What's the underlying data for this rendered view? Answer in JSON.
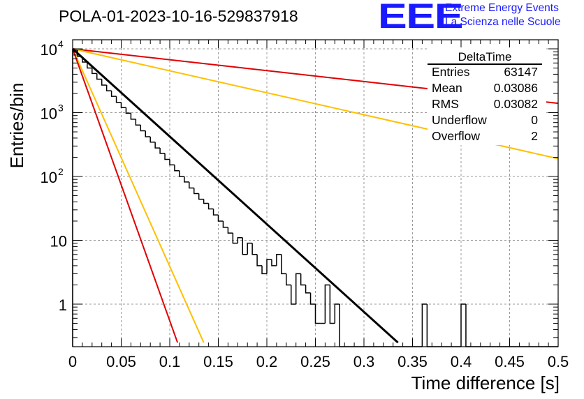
{
  "header": {
    "title": "POLA-01-2023-10-16-529837918",
    "logo_letters": "EEE",
    "logo_line1": "Extreme Energy Events",
    "logo_line2": "La Scienza nelle Scuole"
  },
  "colors": {
    "histogram": "#000000",
    "fit": "#000000",
    "ref_red": "#e00000",
    "ref_orange": "#ffc000",
    "logo": "#1a1aff",
    "grid": "#999999"
  },
  "stats_box": {
    "name": "DeltaTime",
    "rows": [
      {
        "label": "Entries",
        "value": "63147"
      },
      {
        "label": "Mean",
        "value": "0.03086"
      },
      {
        "label": "RMS",
        "value": "0.03082"
      },
      {
        "label": "Underflow",
        "value": "0"
      },
      {
        "label": "Overflow",
        "value": "2"
      }
    ]
  },
  "chart_data": {
    "type": "bar",
    "xlabel": "Time difference [s]",
    "ylabel": "Entries/bin",
    "xlim": [
      0,
      0.5
    ],
    "ylim": [
      0.25,
      15000
    ],
    "y_scale": "log",
    "grid": true,
    "x_ticks": [
      "0",
      "0.05",
      "0.1",
      "0.15",
      "0.2",
      "0.25",
      "0.3",
      "0.35",
      "0.4",
      "0.45",
      "0.5"
    ],
    "y_ticks": [
      {
        "value": 1,
        "label": "1"
      },
      {
        "value": 10,
        "label": "10"
      },
      {
        "value": 100,
        "label": "10",
        "exp": "2"
      },
      {
        "value": 1000,
        "label": "10",
        "exp": "3"
      },
      {
        "value": 10000,
        "label": "10",
        "exp": "4"
      }
    ],
    "bin_width": 0.005,
    "counts": [
      9500,
      7600,
      6200,
      5000,
      4100,
      3350,
      2700,
      2200,
      1800,
      1450,
      1200,
      980,
      790,
      640,
      520,
      420,
      345,
      280,
      230,
      185,
      152,
      123,
      100,
      82,
      66,
      54,
      44,
      38,
      31,
      25,
      20,
      16,
      13,
      9,
      11,
      6,
      9,
      6,
      4,
      3,
      5,
      4,
      6,
      3,
      2,
      1,
      3,
      2,
      1.5,
      1,
      0.5,
      0.5,
      2,
      0.5,
      1,
      0,
      0,
      0,
      0,
      0,
      0,
      0,
      0,
      0,
      0,
      0,
      0,
      0,
      0,
      0,
      0,
      0,
      1,
      0,
      0,
      0,
      0,
      0,
      0,
      0,
      1,
      0,
      0,
      0,
      0,
      0,
      0,
      0,
      0,
      0,
      0,
      0,
      0,
      0,
      0,
      0,
      0,
      0,
      0,
      0
    ],
    "lines": [
      {
        "kind": "fit",
        "color": "#000000",
        "x": [
          0,
          0.335
        ],
        "y": [
          10000,
          0.25
        ]
      },
      {
        "kind": "reference",
        "color": "#e00000",
        "x": [
          0,
          0.5
        ],
        "y": [
          10000,
          1400
        ]
      },
      {
        "kind": "reference",
        "color": "#ffc000",
        "x": [
          0,
          0.5
        ],
        "y": [
          10000,
          190
        ]
      },
      {
        "kind": "reference",
        "color": "#ffc000",
        "x": [
          0,
          0.135
        ],
        "y": [
          10000,
          0.25
        ]
      },
      {
        "kind": "reference",
        "color": "#e00000",
        "x": [
          0,
          0.108
        ],
        "y": [
          10000,
          0.25
        ]
      }
    ]
  }
}
